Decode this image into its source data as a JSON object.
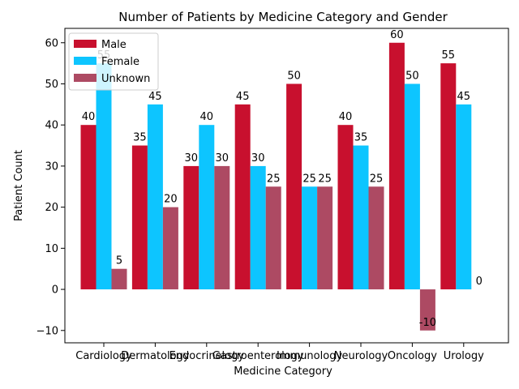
{
  "chart_data": {
    "type": "bar",
    "title": "Number of Patients by Medicine Category and Gender",
    "xlabel": "Medicine Category",
    "ylabel": "Patient Count",
    "categories": [
      "Cardiology",
      "Dermatology",
      "Endocrinology",
      "Gastroenterology",
      "Immunology",
      "Neurology",
      "Oncology",
      "Urology"
    ],
    "series": [
      {
        "name": "Male",
        "color": "#c8102e",
        "values": [
          40,
          35,
          30,
          45,
          50,
          40,
          60,
          55
        ]
      },
      {
        "name": "Female",
        "color": "#0dc5ff",
        "values": [
          55,
          45,
          40,
          30,
          25,
          35,
          50,
          45
        ]
      },
      {
        "name": "Unknown",
        "color": "#ad4a63",
        "values": [
          5,
          20,
          30,
          25,
          25,
          25,
          -10,
          0
        ]
      }
    ],
    "ylim": [
      -13,
      63.5
    ],
    "yticks": [
      -10,
      0,
      10,
      20,
      30,
      40,
      50,
      60
    ],
    "grid": false,
    "legend_position": "upper left"
  }
}
